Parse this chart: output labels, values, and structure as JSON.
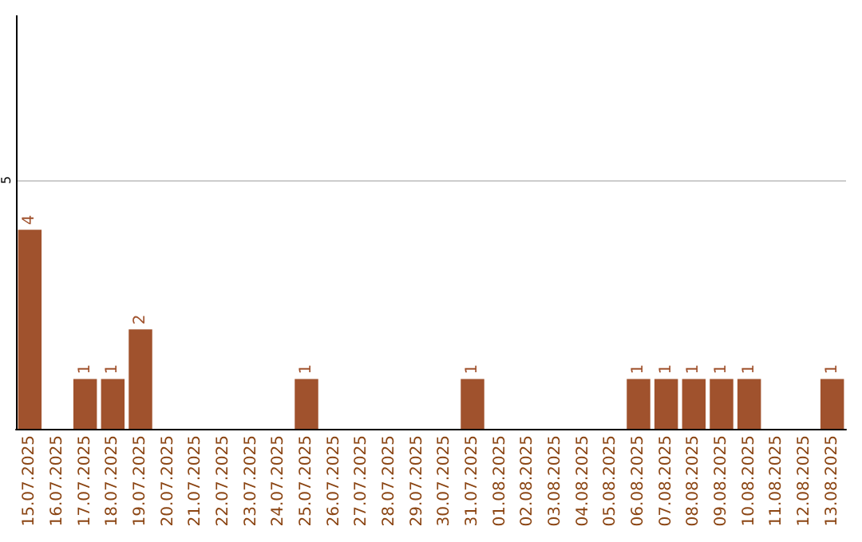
{
  "chart_data": {
    "type": "bar",
    "categories": [
      "15.07.2025",
      "16.07.2025",
      "17.07.2025",
      "18.07.2025",
      "19.07.2025",
      "20.07.2025",
      "21.07.2025",
      "22.07.2025",
      "23.07.2025",
      "24.07.2025",
      "25.07.2025",
      "26.07.2025",
      "27.07.2025",
      "28.07.2025",
      "29.07.2025",
      "30.07.2025",
      "31.07.2025",
      "01.08.2025",
      "02.08.2025",
      "03.08.2025",
      "04.08.2025",
      "05.08.2025",
      "06.08.2025",
      "07.08.2025",
      "08.08.2025",
      "09.08.2025",
      "10.08.2025",
      "11.08.2025",
      "12.08.2025",
      "13.08.2025"
    ],
    "values": [
      4,
      0,
      1,
      1,
      2,
      0,
      0,
      0,
      0,
      0,
      1,
      0,
      0,
      0,
      0,
      0,
      1,
      0,
      0,
      0,
      0,
      0,
      1,
      1,
      1,
      1,
      1,
      0,
      0,
      1
    ],
    "value_labels": [
      "4",
      null,
      "1",
      "1",
      "2",
      null,
      null,
      null,
      null,
      null,
      "1",
      null,
      null,
      null,
      null,
      null,
      "1",
      null,
      null,
      null,
      null,
      null,
      "1",
      "1",
      "1",
      "1",
      "1",
      null,
      null,
      "1"
    ],
    "color": "#a0522d",
    "ylim": [
      0,
      8.3
    ],
    "yticks": [
      5
    ],
    "grid": "y"
  }
}
